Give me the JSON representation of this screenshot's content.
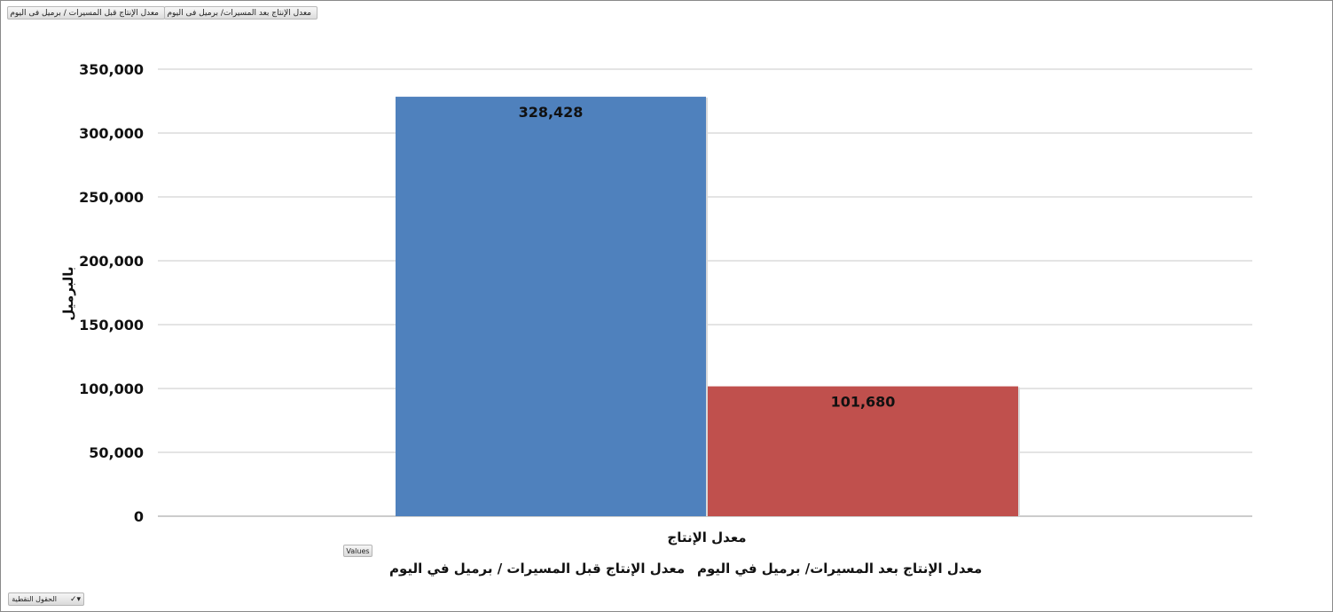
{
  "toolbar": {
    "field_before": "معدل الإنتاج قبل المسيرات / برميل فى اليوم",
    "field_after": "معدل الإنتاج بعد المسيرات/ برميل فى اليوم",
    "values_label": "Values",
    "fields_label": "الحقول النقطية",
    "fields_icon": "check-icon"
  },
  "chart_data": {
    "type": "bar",
    "categories": [
      "معدل الإنتاج"
    ],
    "series": [
      {
        "name": "معدل الإنتاج قبل المسيرات / برميل في اليوم",
        "values": [
          328428
        ],
        "color": "#4F81BD"
      },
      {
        "name": "معدل الإنتاج بعد المسيرات/ برميل في اليوم",
        "values": [
          101680
        ],
        "color": "#C0504D"
      }
    ],
    "data_labels": [
      "328,428",
      "101,680"
    ],
    "xlabel": "معدل الإنتاج",
    "ylabel": "بالبرميل",
    "ylim": [
      0,
      350000
    ],
    "yticks": [
      0,
      50000,
      100000,
      150000,
      200000,
      250000,
      300000,
      350000
    ],
    "ytick_labels": [
      "0",
      "50,000",
      "100,000",
      "150,000",
      "200,000",
      "250,000",
      "300,000",
      "350,000"
    ],
    "grid": true,
    "legend_position": "bottom"
  }
}
